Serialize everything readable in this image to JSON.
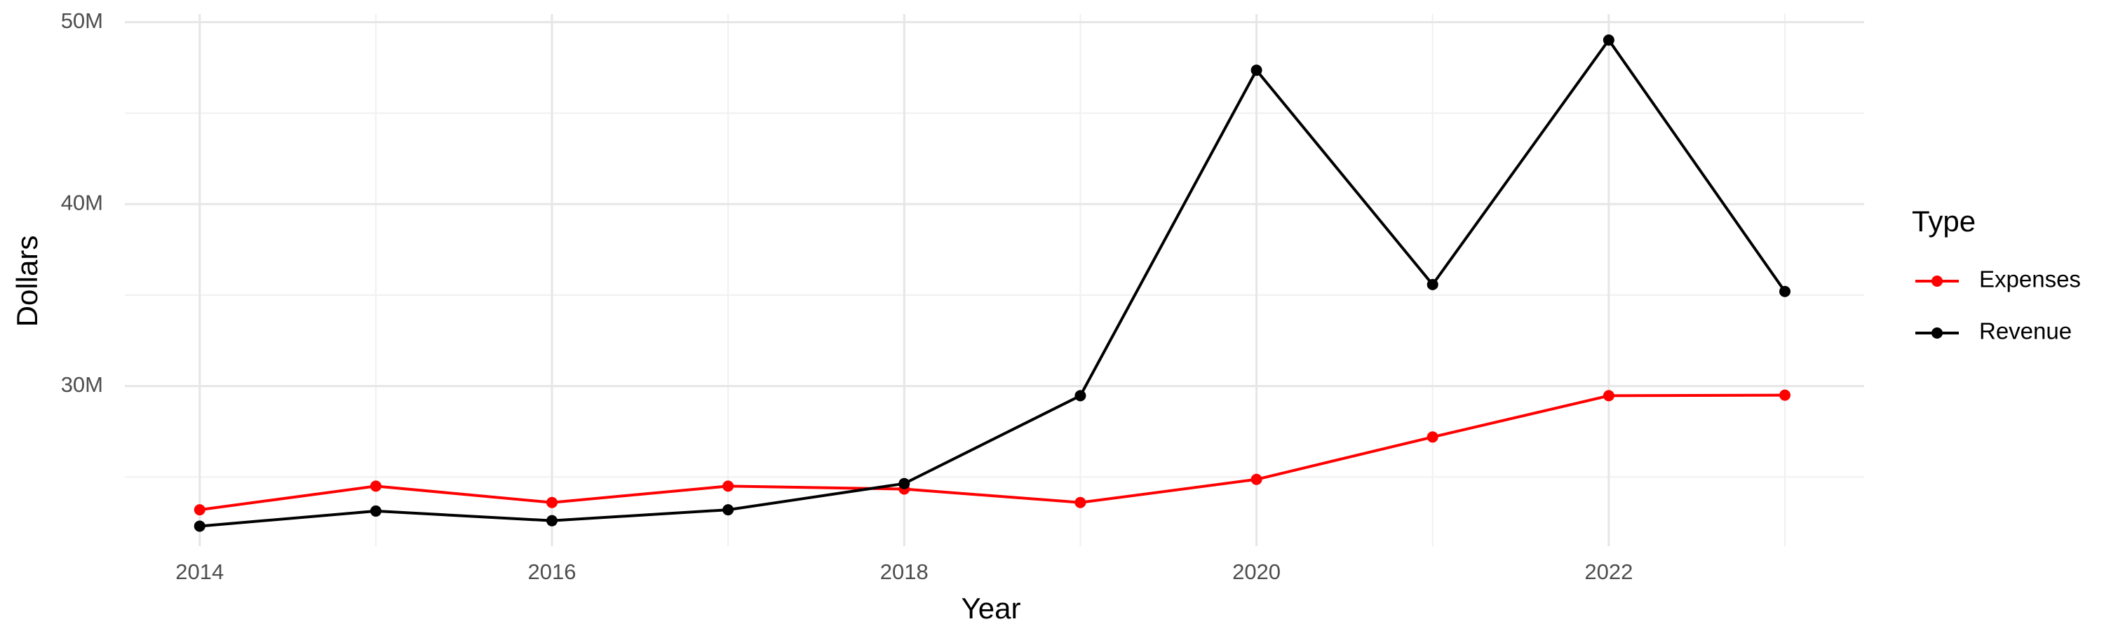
{
  "chart_data": {
    "type": "line",
    "x_label": "Year",
    "y_label": "Dollars",
    "legend_title": "Type",
    "x": [
      2014,
      2015,
      2016,
      2017,
      2018,
      2019,
      2020,
      2021,
      2022,
      2023
    ],
    "series": [
      {
        "name": "Expenses",
        "color": "#ff0000",
        "values": [
          23200000,
          24500000,
          23600000,
          24500000,
          24340000,
          23600000,
          24870000,
          27200000,
          29470000,
          29500000
        ]
      },
      {
        "name": "Revenue",
        "color": "#000000",
        "values": [
          22300000,
          23130000,
          22600000,
          23200000,
          24640000,
          29470000,
          47360000,
          35580000,
          49020000,
          35200000
        ]
      }
    ],
    "xlim": [
      2013.575,
      2023.45
    ],
    "xticks": [
      2014,
      2016,
      2018,
      2020,
      2022
    ],
    "ylim": [
      21200000,
      50450000
    ],
    "yticks": [
      {
        "value": 30000000,
        "label": "30M"
      },
      {
        "value": 40000000,
        "label": "40M"
      },
      {
        "value": 50000000,
        "label": "50M"
      }
    ],
    "grid": true,
    "legend_position": "right"
  }
}
